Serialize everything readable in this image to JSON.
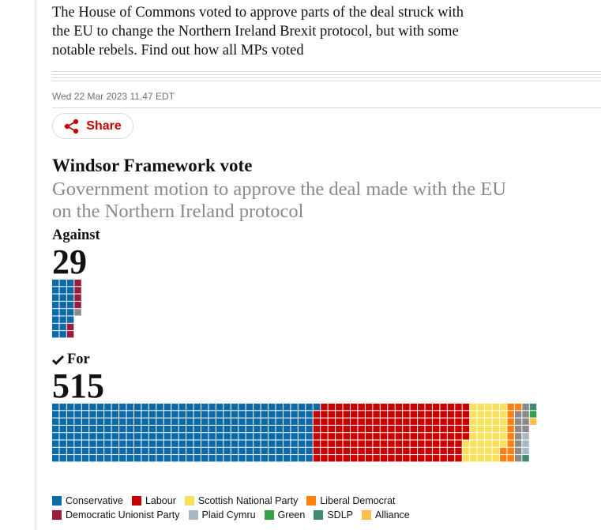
{
  "intro": [
    "The House of Commons voted to approve parts of the deal struck with",
    "the EU to change the Northern Ireland Brexit protocol, but with some",
    "notable rebels. Find out how all MPs voted"
  ],
  "timestamp": "Wed 22 Mar 2023 11.47 EDT",
  "share": "Share",
  "chart": {
    "title": "Windsor Framework vote",
    "subtitle": [
      "Government motion to approve the deal made with the EU",
      "on the Northern Ireland protocol"
    ],
    "against": {
      "label": "Against",
      "total": 29,
      "groups": [
        {
          "count": 22,
          "color": "#0d69a8"
        },
        {
          "count": 6,
          "color": "#9b1b3a"
        },
        {
          "count": 1,
          "color": "#8a8a8a"
        }
      ]
    },
    "for": {
      "label": "For",
      "total": 515,
      "groups": [
        {
          "count": 281,
          "color": "#0d69a8"
        },
        {
          "count": 164,
          "color": "#c70000"
        },
        {
          "count": 41,
          "color": "#f8e15a"
        },
        {
          "count": 11,
          "color": "#ff7f0f"
        },
        {
          "count": 11,
          "color": "#8a8a8a"
        },
        {
          "count": 3,
          "color": "#a6b9c5"
        },
        {
          "count": 2,
          "color": "#3f8a75"
        },
        {
          "count": 1,
          "color": "#39a048"
        },
        {
          "count": 1,
          "color": "#ffbd49"
        }
      ]
    },
    "legend": [
      [
        {
          "name": "Conservative",
          "color": "#0d69a8"
        },
        {
          "name": "Labour",
          "color": "#c70000"
        },
        {
          "name": "Scottish National Party",
          "color": "#f8e15a"
        },
        {
          "name": "Liberal Democrat",
          "color": "#ff7f0f"
        }
      ],
      [
        {
          "name": "Democratic Unionist Party",
          "color": "#9b1b3a"
        },
        {
          "name": "Plaid Cymru",
          "color": "#a6b9c5"
        },
        {
          "name": "Green",
          "color": "#39a048"
        },
        {
          "name": "SDLP",
          "color": "#3f8a75"
        },
        {
          "name": "Alliance",
          "color": "#ffbd49"
        }
      ]
    ]
  }
}
